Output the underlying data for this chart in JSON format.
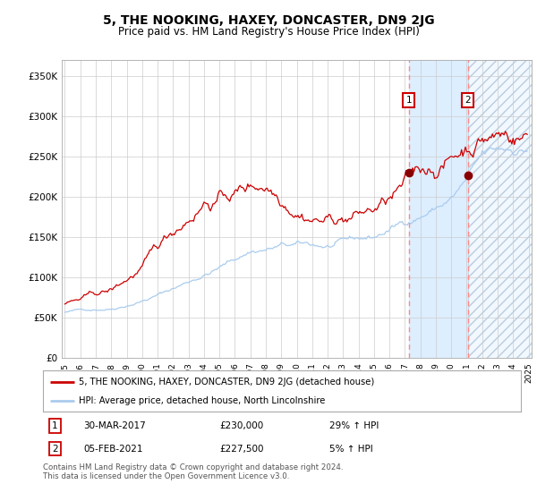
{
  "title": "5, THE NOOKING, HAXEY, DONCASTER, DN9 2JG",
  "subtitle": "Price paid vs. HM Land Registry's House Price Index (HPI)",
  "legend_line1": "5, THE NOOKING, HAXEY, DONCASTER, DN9 2JG (detached house)",
  "legend_line2": "HPI: Average price, detached house, North Lincolnshire",
  "annotation1_date": "30-MAR-2017",
  "annotation1_price": "£230,000",
  "annotation1_hpi": "29% ↑ HPI",
  "annotation1_year": 2017.25,
  "annotation1_value": 230000,
  "annotation2_date": "05-FEB-2021",
  "annotation2_price": "£227,500",
  "annotation2_hpi": "5% ↑ HPI",
  "annotation2_year": 2021.08,
  "annotation2_value": 227500,
  "ylabel_ticks": [
    "£0",
    "£50K",
    "£100K",
    "£150K",
    "£200K",
    "£250K",
    "£300K",
    "£350K"
  ],
  "ytick_values": [
    0,
    50000,
    100000,
    150000,
    200000,
    250000,
    300000,
    350000
  ],
  "ylim": [
    0,
    370000
  ],
  "xstart": 1995,
  "xend": 2025,
  "footnote": "Contains HM Land Registry data © Crown copyright and database right 2024.\nThis data is licensed under the Open Government Licence v3.0.",
  "bg_color": "#ffffff",
  "grid_color": "#cccccc",
  "red_line_color": "#cc0000",
  "blue_line_color": "#aaccee",
  "highlight_color": "#ddeeff",
  "dashed_line_color": "#ff8888",
  "dot_color": "#880000"
}
